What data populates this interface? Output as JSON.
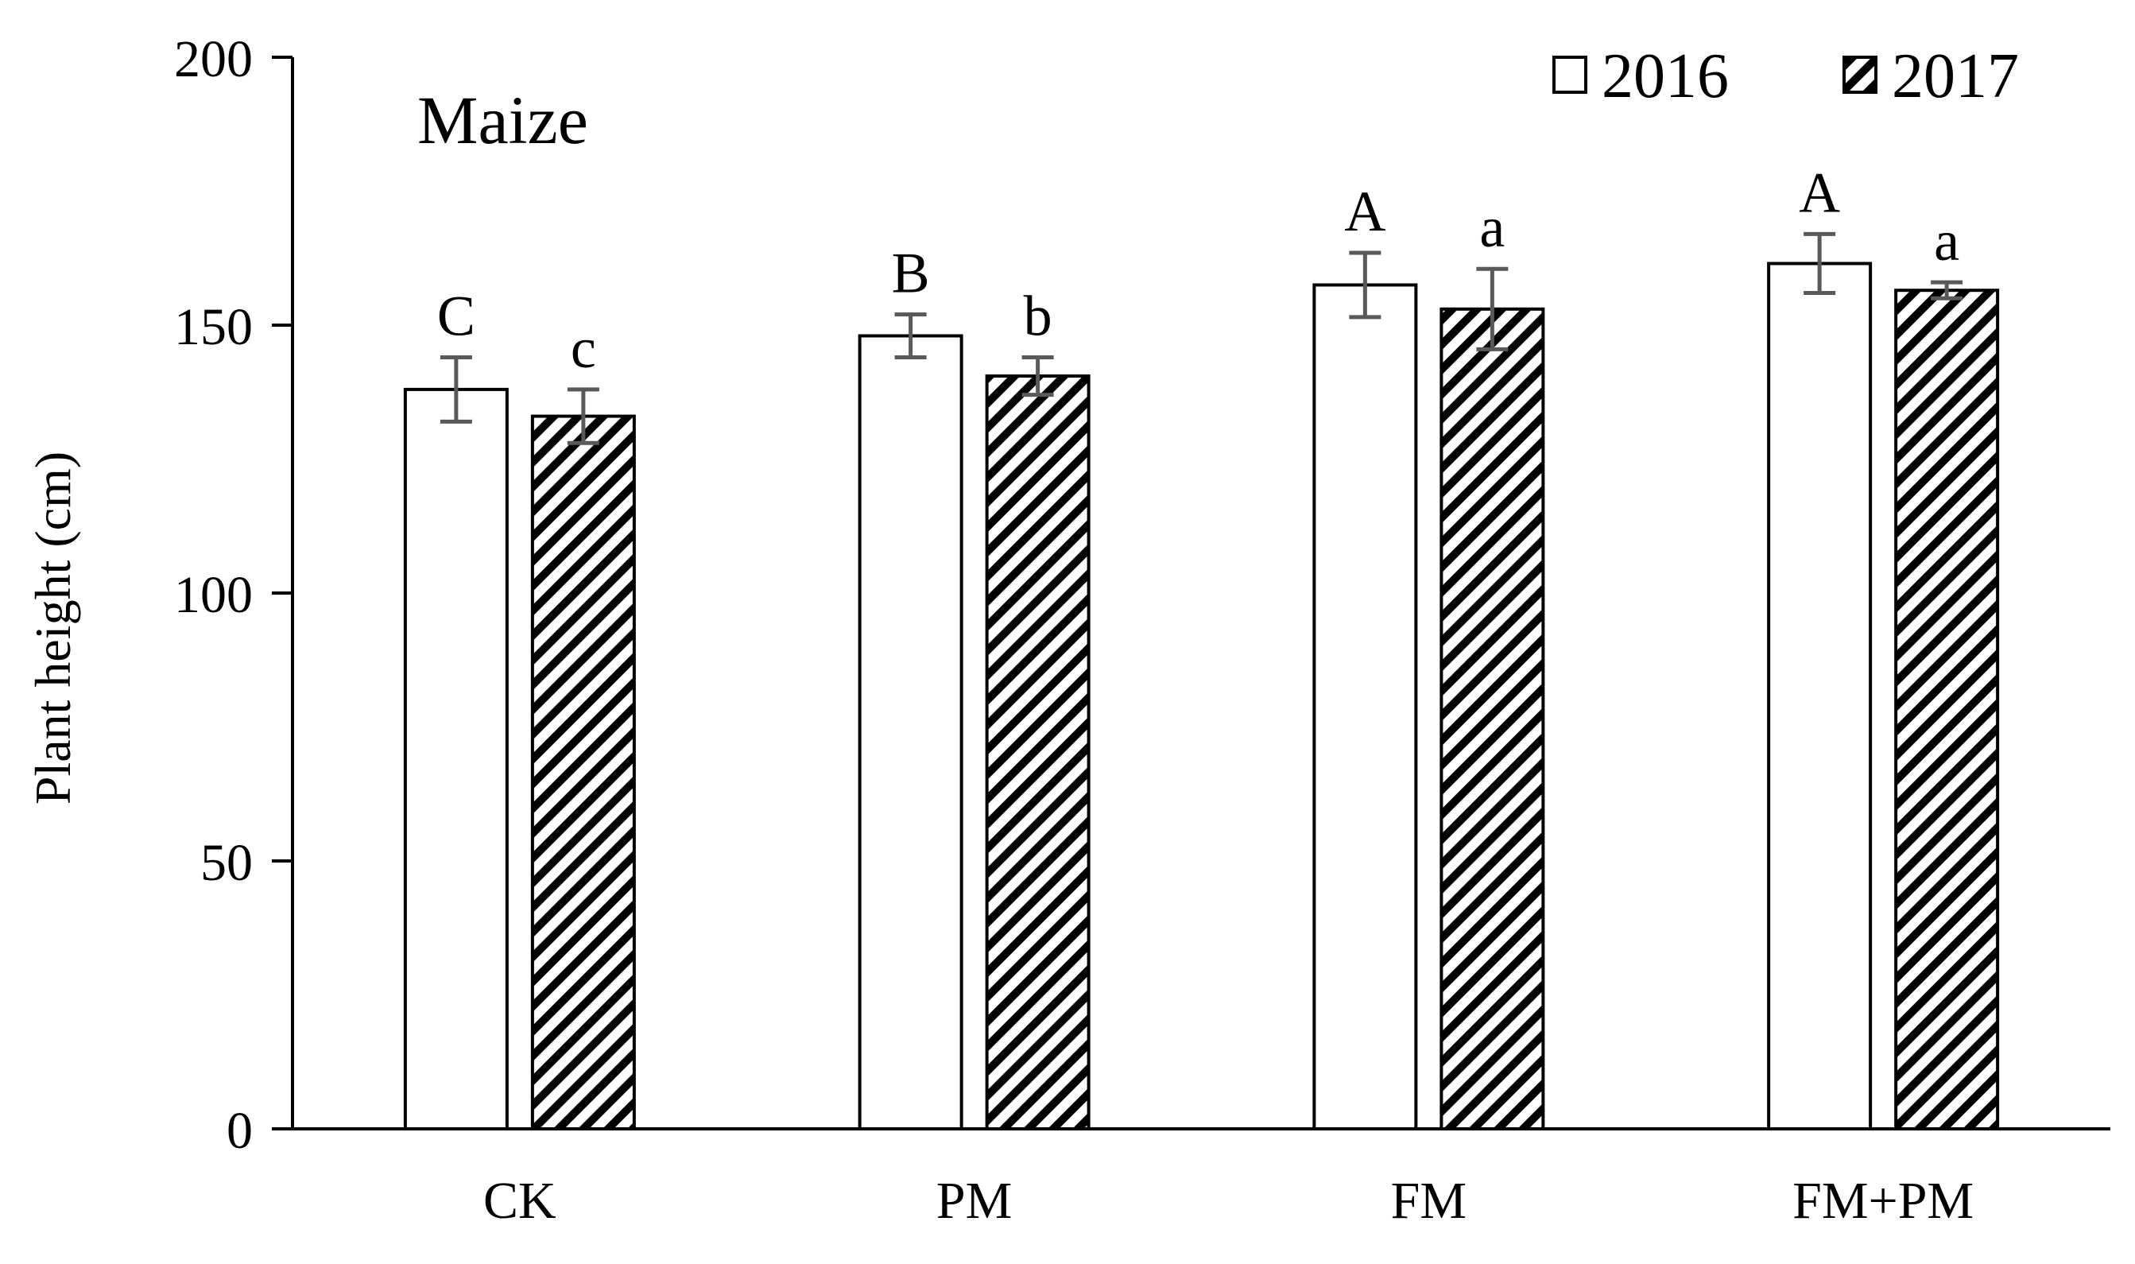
{
  "chart_data": {
    "type": "bar",
    "title": "Maize",
    "xlabel": "",
    "ylabel": "Plant height (cm)",
    "ylim": [
      0,
      200
    ],
    "yticks": [
      "0",
      "50",
      "100",
      "150",
      "200"
    ],
    "categories": [
      "CK",
      "PM",
      "FM",
      "FM+PM"
    ],
    "series": [
      {
        "name": "2016",
        "fill": "white",
        "values": [
          138,
          148,
          157.5,
          161.5
        ],
        "errors": [
          6,
          4,
          6,
          5.5
        ],
        "letters": [
          "C",
          "B",
          "A",
          "A"
        ]
      },
      {
        "name": "2017",
        "fill": "hatched",
        "values": [
          133,
          140.5,
          153,
          156.5
        ],
        "errors": [
          5,
          3.5,
          7.5,
          1.5
        ],
        "letters": [
          "c",
          "b",
          "a",
          "a"
        ]
      }
    ],
    "legend_position": "top-right",
    "grid": false,
    "colors": {
      "axis": "#000000",
      "bar_outline": "#000000",
      "errorbar": "#595959",
      "hatch": "#000000"
    }
  }
}
